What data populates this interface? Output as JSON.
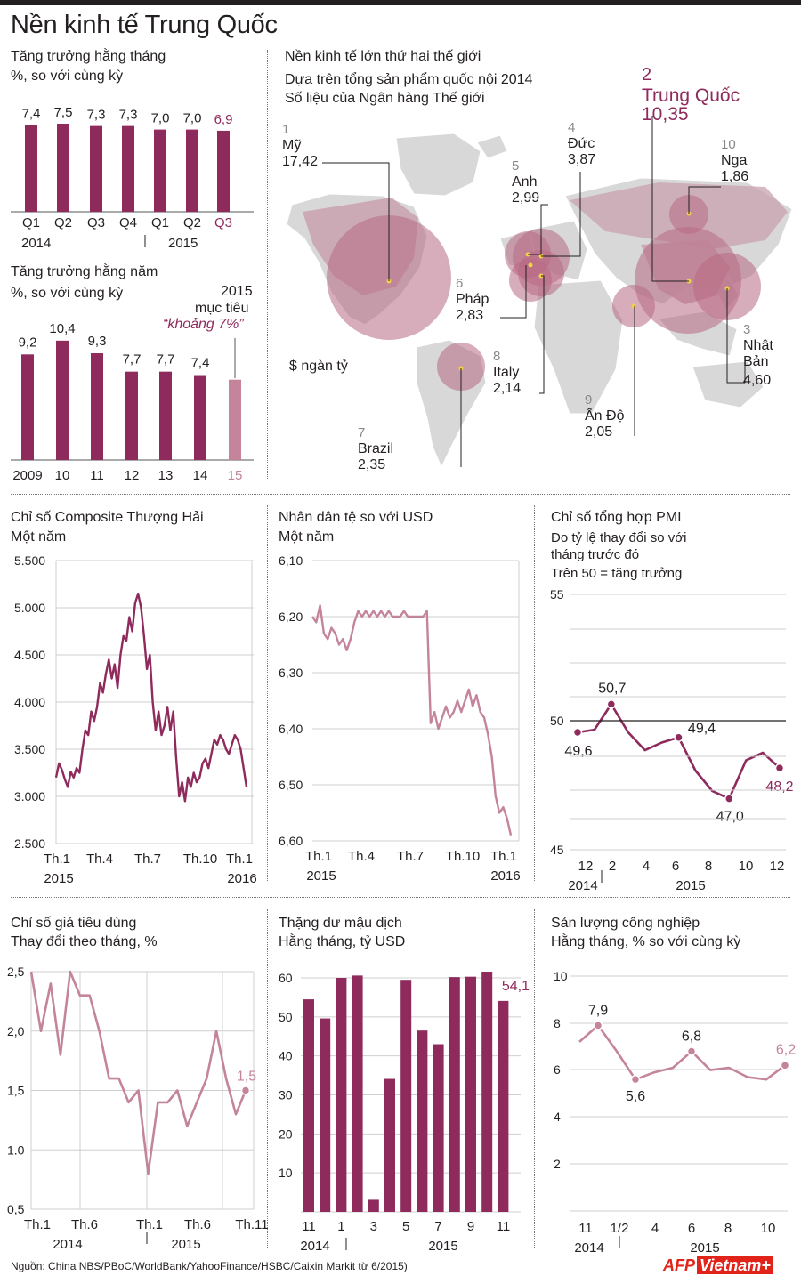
{
  "title": "Nền kinh tế Trung Quốc",
  "colors": {
    "main": "#8e2a5c",
    "light": "#c4849c",
    "grid": "#cfcfcf",
    "map_land": "#d8d8d8",
    "bubble": "#b86a83"
  },
  "monthly_growth": {
    "title": "Tăng trưởng hằng tháng",
    "subtitle": "%, so với cùng kỳ",
    "chart_data": {
      "type": "bar",
      "categories": [
        "Q1",
        "Q2",
        "Q3",
        "Q4",
        "Q1",
        "Q2",
        "Q3"
      ],
      "values": [
        7.4,
        7.5,
        7.3,
        7.3,
        7.0,
        7.0,
        6.9
      ],
      "value_labels": [
        "7,4",
        "7,5",
        "7,3",
        "7,3",
        "7,0",
        "7,0",
        "6,9"
      ],
      "year_labels": [
        "2014",
        "2015"
      ],
      "highlight_last": true
    }
  },
  "annual_growth": {
    "title": "Tăng trưởng hằng năm",
    "subtitle": "%, so với cùng kỳ",
    "target_line1": "2015",
    "target_line2": "mục tiêu",
    "target_line3": "“khoảng 7%”",
    "chart_data": {
      "type": "bar",
      "categories": [
        "2009",
        "10",
        "11",
        "12",
        "13",
        "14",
        "15"
      ],
      "values": [
        9.2,
        10.4,
        9.3,
        7.7,
        7.7,
        7.4,
        7.0
      ],
      "value_labels": [
        "9,2",
        "10,4",
        "9,3",
        "7,7",
        "7,7",
        "7,4",
        ""
      ],
      "highlight_last": true
    }
  },
  "world_map": {
    "title": "Nền kinh tế lớn thứ hai thế giới",
    "subtitle1": "Dựa trên tổng sản phẩm quốc nội 2014",
    "subtitle2": "Số liệu của Ngân hàng Thế giới",
    "unit": "$ ngàn tỷ",
    "chart_data": {
      "type": "bubble-map",
      "countries": [
        {
          "rank": "1",
          "name": "Mỹ",
          "gdp": "17,42"
        },
        {
          "rank": "2",
          "name": "Trung Quốc",
          "gdp": "10,35"
        },
        {
          "rank": "3",
          "name": "Nhật",
          "name2": "Bản",
          "gdp": "4,60"
        },
        {
          "rank": "4",
          "name": "Đức",
          "gdp": "3,87"
        },
        {
          "rank": "5",
          "name": "Anh",
          "gdp": "2,99"
        },
        {
          "rank": "6",
          "name": "Pháp",
          "gdp": "2,83"
        },
        {
          "rank": "7",
          "name": "Brazil",
          "gdp": "2,35"
        },
        {
          "rank": "8",
          "name": "Italy",
          "gdp": "2,14"
        },
        {
          "rank": "9",
          "name": "Ấn Độ",
          "gdp": "2,05"
        },
        {
          "rank": "10",
          "name": "Nga",
          "gdp": "1,86"
        }
      ]
    }
  },
  "shanghai": {
    "title": "Chỉ số Composite Thượng Hải",
    "subtitle": "Một năm",
    "chart_data": {
      "type": "line",
      "ylim": [
        2500,
        5500
      ],
      "yticks": [
        "5.500",
        "5.000",
        "4.500",
        "4.000",
        "3.500",
        "3.000",
        "2.500"
      ],
      "xticks": [
        "Th.1",
        "Th.4",
        "Th.7",
        "Th.10",
        "Th.1"
      ],
      "xyears": [
        "2015",
        "2016"
      ],
      "values": [
        3200,
        3350,
        3280,
        3180,
        3100,
        3260,
        3200,
        3300,
        3250,
        3500,
        3700,
        3650,
        3900,
        3800,
        3950,
        4200,
        4100,
        4300,
        4450,
        4250,
        4400,
        4150,
        4500,
        4700,
        4650,
        4900,
        4750,
        5050,
        5150,
        5000,
        4700,
        4350,
        4500,
        4000,
        3700,
        3900,
        3650,
        3750,
        3950,
        3700,
        3900,
        3400,
        3000,
        3150,
        2950,
        3200,
        3100,
        3250,
        3150,
        3200,
        3350,
        3400,
        3300,
        3450,
        3600,
        3550,
        3650,
        3600,
        3500,
        3450,
        3550,
        3650,
        3600,
        3500,
        3300,
        3100
      ]
    }
  },
  "yuan": {
    "title": "Nhân dân tệ so với USD",
    "subtitle": "Một năm",
    "chart_data": {
      "type": "line",
      "ylim": [
        6.1,
        6.6
      ],
      "reversed": true,
      "yticks": [
        "6,10",
        "6,20",
        "6,30",
        "6,40",
        "6,50",
        "6,60"
      ],
      "xticks": [
        "Th.1",
        "Th.4",
        "Th.7",
        "Th.10",
        "Th.1"
      ],
      "xyears": [
        "2015",
        "2016"
      ],
      "values": [
        6.2,
        6.21,
        6.18,
        6.23,
        6.24,
        6.22,
        6.23,
        6.25,
        6.24,
        6.26,
        6.24,
        6.21,
        6.19,
        6.2,
        6.19,
        6.2,
        6.19,
        6.2,
        6.19,
        6.2,
        6.19,
        6.2,
        6.2,
        6.2,
        6.19,
        6.2,
        6.2,
        6.2,
        6.2,
        6.2,
        6.19,
        6.39,
        6.37,
        6.4,
        6.38,
        6.36,
        6.38,
        6.37,
        6.35,
        6.37,
        6.35,
        6.33,
        6.36,
        6.34,
        6.37,
        6.38,
        6.41,
        6.45,
        6.52,
        6.55,
        6.54,
        6.56,
        6.59
      ]
    }
  },
  "pmi": {
    "title": "Chỉ số tổng hợp PMI",
    "subtitle1": "Đo tỷ lệ thay đổi so với",
    "subtitle2": "tháng trước đó",
    "subtitle3": "Trên 50 = tăng trưởng",
    "chart_data": {
      "type": "line",
      "ylim": [
        45,
        55
      ],
      "yticks": [
        "55",
        "50",
        "45"
      ],
      "xticks": [
        "12",
        "2",
        "4",
        "6",
        "8",
        "10",
        "12"
      ],
      "xyears": [
        "2014",
        "2015"
      ],
      "values": [
        49.6,
        49.7,
        50.7,
        49.6,
        48.9,
        49.2,
        49.4,
        48.1,
        47.3,
        47.0,
        48.5,
        48.8,
        48.2
      ],
      "point_labels": [
        {
          "i": 0,
          "text": "49,6"
        },
        {
          "i": 2,
          "text": "50,7"
        },
        {
          "i": 6,
          "text": "49,4"
        },
        {
          "i": 9,
          "text": "47,0"
        },
        {
          "i": 12,
          "text": "48,2"
        }
      ]
    }
  },
  "cpi": {
    "title": "Chỉ số giá tiêu dùng",
    "subtitle": "Thay đổi theo tháng, %",
    "chart_data": {
      "type": "line",
      "ylim": [
        0.5,
        2.5
      ],
      "yticks": [
        "2,5",
        "2,0",
        "1,5",
        "1.0",
        "0,5"
      ],
      "xticks": [
        "Th.1",
        "Th.6",
        "Th.1",
        "Th.6",
        "Th.11"
      ],
      "xyears": [
        "2014",
        "2015"
      ],
      "values": [
        2.5,
        2.0,
        2.4,
        1.8,
        2.5,
        2.3,
        2.3,
        2.0,
        1.6,
        1.6,
        1.4,
        1.5,
        0.8,
        1.4,
        1.4,
        1.5,
        1.2,
        1.4,
        1.6,
        2.0,
        1.6,
        1.3,
        1.5
      ],
      "point_labels": [
        {
          "i": 22,
          "text": "1,5"
        }
      ]
    }
  },
  "trade": {
    "title": "Thặng dư mậu dịch",
    "subtitle": "Hằng tháng, tỷ USD",
    "chart_data": {
      "type": "bar",
      "ylim": [
        0,
        60
      ],
      "yticks": [
        "60",
        "50",
        "40",
        "30",
        "20",
        "10"
      ],
      "xticks": [
        "11",
        "1",
        "3",
        "5",
        "7",
        "9",
        "11"
      ],
      "xyears": [
        "2014",
        "2015"
      ],
      "values": [
        54.5,
        49.6,
        60.0,
        60.6,
        3.1,
        34.1,
        59.5,
        46.5,
        43.0,
        60.2,
        60.3,
        61.6,
        54.1
      ],
      "point_labels": [
        {
          "i": 12,
          "text": "54,1"
        }
      ]
    }
  },
  "industrial": {
    "title": "Sản lượng công nghiệp",
    "subtitle": "Hằng tháng, % so với cùng kỳ",
    "chart_data": {
      "type": "line",
      "ylim": [
        0,
        10
      ],
      "yticks": [
        "10",
        "8",
        "6",
        "4",
        "2"
      ],
      "xticks": [
        "11",
        "1/2",
        "4",
        "6",
        "8",
        "10"
      ],
      "xyears": [
        "2014",
        "2015"
      ],
      "values": [
        7.2,
        7.9,
        6.8,
        5.6,
        5.9,
        6.1,
        6.8,
        6.0,
        6.1,
        5.7,
        5.6,
        6.2
      ],
      "point_labels": [
        {
          "i": 1,
          "text": "7,9"
        },
        {
          "i": 3,
          "text": "5,6"
        },
        {
          "i": 6,
          "text": "6,8"
        },
        {
          "i": 11,
          "text": "6,2"
        }
      ]
    }
  },
  "source": "Nguồn: China NBS/PBoC/WorldBank/YahooFinance/HSBC/Caixin Markit từ 6/2015)",
  "brand_afp": "AFP",
  "brand_vn": "Vietnam+"
}
